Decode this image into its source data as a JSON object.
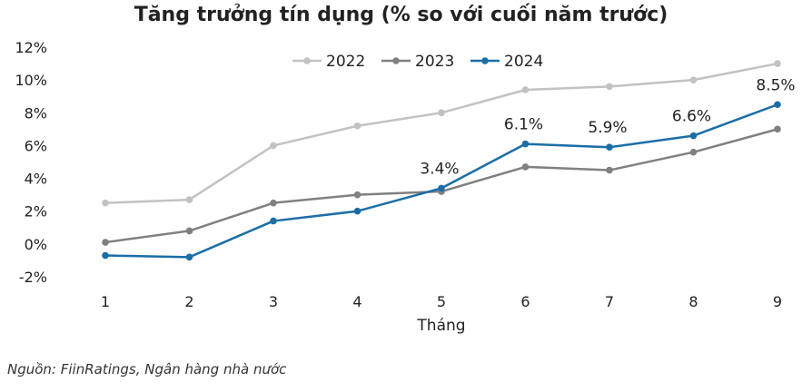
{
  "chart_data": {
    "type": "line",
    "title": "Tăng trưởng tín dụng (% so với cuối năm trước)",
    "xlabel": "Tháng",
    "ylabel": "",
    "x": [
      1,
      2,
      3,
      4,
      5,
      6,
      7,
      8,
      9
    ],
    "ylim": [
      -2,
      12
    ],
    "y_ticks": [
      "-2%",
      "0%",
      "2%",
      "4%",
      "6%",
      "8%",
      "10%",
      "12%"
    ],
    "y_tick_values": [
      -2,
      0,
      2,
      4,
      6,
      8,
      10,
      12
    ],
    "grid": false,
    "legend_position": "top-right",
    "series": [
      {
        "name": "2022",
        "color": "#c2c2c2",
        "values": [
          2.5,
          2.7,
          6.0,
          7.2,
          8.0,
          9.4,
          9.6,
          10.0,
          11.0
        ]
      },
      {
        "name": "2023",
        "color": "#808080",
        "values": [
          0.1,
          0.8,
          2.5,
          3.0,
          3.2,
          4.7,
          4.5,
          5.6,
          7.0
        ]
      },
      {
        "name": "2024",
        "color": "#1a6ea8",
        "values": [
          -0.7,
          -0.8,
          1.4,
          2.0,
          3.4,
          6.1,
          5.9,
          6.6,
          8.5
        ]
      }
    ],
    "annotations": [
      {
        "series": "2024",
        "x": 5,
        "text": "3.4%"
      },
      {
        "series": "2024",
        "x": 6,
        "text": "6.1%"
      },
      {
        "series": "2024",
        "x": 7,
        "text": "5.9%"
      },
      {
        "series": "2024",
        "x": 8,
        "text": "6.6%"
      },
      {
        "series": "2024",
        "x": 9,
        "text": "8.5%"
      }
    ]
  },
  "source": "Nguồn: FiinRatings, Ngân hàng nhà nước"
}
